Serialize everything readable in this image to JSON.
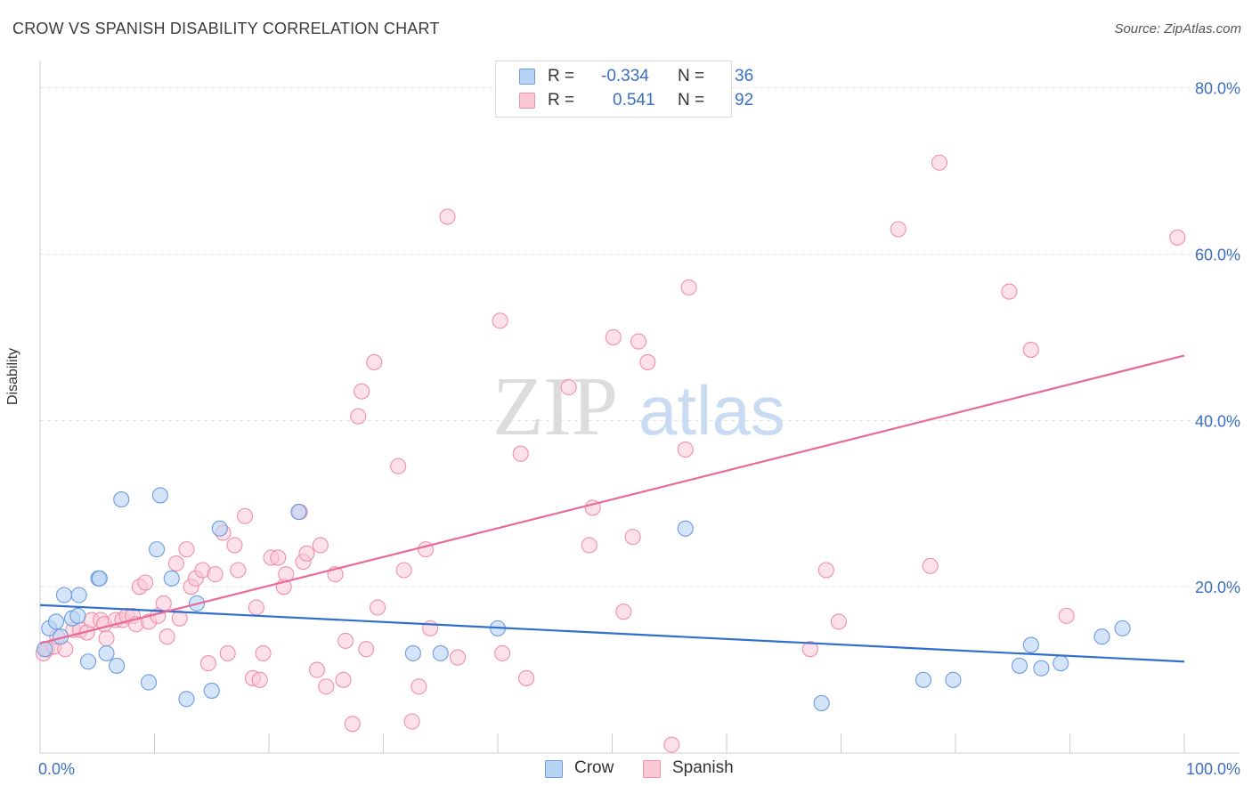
{
  "title": "CROW VS SPANISH DISABILITY CORRELATION CHART",
  "source": "Source: ZipAtlas.com",
  "watermark": {
    "zip": "ZIP",
    "atlas": "atlas"
  },
  "colors": {
    "crow_fill": "#b9d3f5",
    "crow_stroke": "#6b9be0",
    "crow_line": "#2f6fce",
    "spanish_fill": "#f9c9d6",
    "spanish_stroke": "#ef8fac",
    "spanish_line": "#e8699a",
    "axis_text": "#3a6fc4",
    "grid": "#e3e3e3"
  },
  "stats": {
    "r_label": "R =",
    "n_label": "N =",
    "crow": {
      "r": "-0.334",
      "n": "36"
    },
    "spanish": {
      "r": "0.541",
      "n": "92"
    }
  },
  "chart_data": {
    "type": "scatter",
    "title": "CROW VS SPANISH DISABILITY CORRELATION CHART",
    "xlabel": "",
    "ylabel": "Disability",
    "xlim": [
      0,
      100
    ],
    "ylim": [
      0,
      82
    ],
    "x_tick_labels": [
      {
        "value": 0,
        "label": "0.0%"
      },
      {
        "value": 100,
        "label": "100.0%"
      }
    ],
    "y_tick_labels": [
      {
        "value": 20,
        "label": "20.0%"
      },
      {
        "value": 40,
        "label": "40.0%"
      },
      {
        "value": 60,
        "label": "60.0%"
      },
      {
        "value": 80,
        "label": "80.0%"
      }
    ],
    "grid": true,
    "legend_position": "bottom-center",
    "series": [
      {
        "name": "Crow",
        "points": [
          [
            0.4,
            12.5
          ],
          [
            0.8,
            15
          ],
          [
            1.4,
            15.8
          ],
          [
            1.8,
            14
          ],
          [
            2.1,
            19
          ],
          [
            2.8,
            16.2
          ],
          [
            3.3,
            16.5
          ],
          [
            3.4,
            19
          ],
          [
            4.2,
            11
          ],
          [
            5.1,
            21
          ],
          [
            5.2,
            21
          ],
          [
            5.8,
            12
          ],
          [
            6.7,
            10.5
          ],
          [
            7.1,
            30.5
          ],
          [
            9.5,
            8.5
          ],
          [
            10.2,
            24.5
          ],
          [
            10.5,
            31
          ],
          [
            11.5,
            21
          ],
          [
            12.8,
            6.5
          ],
          [
            13.7,
            18
          ],
          [
            15,
            7.5
          ],
          [
            15.7,
            27
          ],
          [
            22.6,
            29
          ],
          [
            32.6,
            12
          ],
          [
            35,
            12
          ],
          [
            40,
            15
          ],
          [
            56.4,
            27
          ],
          [
            68.3,
            6
          ],
          [
            77.2,
            8.8
          ],
          [
            79.8,
            8.8
          ],
          [
            85.6,
            10.5
          ],
          [
            86.6,
            13
          ],
          [
            87.5,
            10.2
          ],
          [
            89.2,
            10.8
          ],
          [
            92.8,
            14
          ],
          [
            94.6,
            15
          ]
        ]
      },
      {
        "name": "Spanish",
        "points": [
          [
            0.3,
            12
          ],
          [
            0.6,
            12.5
          ],
          [
            1.2,
            12.8
          ],
          [
            1.5,
            14
          ],
          [
            2.2,
            12.5
          ],
          [
            2.9,
            14.8
          ],
          [
            3.5,
            14.8
          ],
          [
            4.1,
            14.5
          ],
          [
            4.5,
            16
          ],
          [
            5.3,
            16
          ],
          [
            5.6,
            15.5
          ],
          [
            5.8,
            13.8
          ],
          [
            6.6,
            16
          ],
          [
            7.2,
            16
          ],
          [
            7.6,
            16.5
          ],
          [
            8.1,
            16.5
          ],
          [
            8.4,
            15.5
          ],
          [
            8.7,
            20
          ],
          [
            9.2,
            20.5
          ],
          [
            9.5,
            15.8
          ],
          [
            10.3,
            16.5
          ],
          [
            10.8,
            18
          ],
          [
            11.1,
            14
          ],
          [
            11.9,
            22.8
          ],
          [
            12.2,
            16.2
          ],
          [
            12.8,
            24.5
          ],
          [
            13.2,
            20
          ],
          [
            13.6,
            21
          ],
          [
            14.2,
            22
          ],
          [
            14.7,
            10.8
          ],
          [
            15.3,
            21.5
          ],
          [
            16,
            26.5
          ],
          [
            16.4,
            12
          ],
          [
            17,
            25
          ],
          [
            17.3,
            22
          ],
          [
            17.9,
            28.5
          ],
          [
            18.6,
            9
          ],
          [
            18.9,
            17.5
          ],
          [
            19.2,
            8.8
          ],
          [
            19.5,
            12
          ],
          [
            20.2,
            23.5
          ],
          [
            20.8,
            23.5
          ],
          [
            21.3,
            20
          ],
          [
            21.5,
            21.5
          ],
          [
            22.7,
            29
          ],
          [
            23,
            23
          ],
          [
            23.3,
            24
          ],
          [
            24.2,
            10
          ],
          [
            24.5,
            25
          ],
          [
            25,
            8
          ],
          [
            25.8,
            21.5
          ],
          [
            26.5,
            8.8
          ],
          [
            26.7,
            13.5
          ],
          [
            27.3,
            3.5
          ],
          [
            27.8,
            40.5
          ],
          [
            28.1,
            43.5
          ],
          [
            28.5,
            12.5
          ],
          [
            29.2,
            47
          ],
          [
            29.5,
            17.5
          ],
          [
            31.3,
            34.5
          ],
          [
            31.8,
            22
          ],
          [
            32.5,
            3.8
          ],
          [
            33.1,
            8
          ],
          [
            33.7,
            24.5
          ],
          [
            34.1,
            15
          ],
          [
            35.6,
            64.5
          ],
          [
            36.5,
            11.5
          ],
          [
            40.2,
            52
          ],
          [
            40.4,
            12
          ],
          [
            42,
            36
          ],
          [
            42.5,
            9
          ],
          [
            46.2,
            44
          ],
          [
            48,
            25
          ],
          [
            48.3,
            29.5
          ],
          [
            50.1,
            50
          ],
          [
            51,
            17
          ],
          [
            51.8,
            26
          ],
          [
            52.3,
            49.5
          ],
          [
            53.1,
            47
          ],
          [
            55.2,
            1
          ],
          [
            56.4,
            36.5
          ],
          [
            56.7,
            56
          ],
          [
            67.3,
            12.5
          ],
          [
            68.7,
            22
          ],
          [
            69.8,
            15.8
          ],
          [
            75,
            63
          ],
          [
            77.8,
            22.5
          ],
          [
            78.6,
            71
          ],
          [
            84.7,
            55.5
          ],
          [
            86.6,
            48.5
          ],
          [
            89.7,
            16.5
          ],
          [
            99.4,
            62
          ]
        ]
      }
    ],
    "trend_lines": [
      {
        "series": "Crow",
        "x": [
          0,
          100
        ],
        "y": [
          17.8,
          11
        ]
      },
      {
        "series": "Spanish",
        "x": [
          0,
          100
        ],
        "y": [
          13.2,
          47.8
        ]
      }
    ]
  },
  "legend": {
    "crow": "Crow",
    "spanish": "Spanish"
  }
}
